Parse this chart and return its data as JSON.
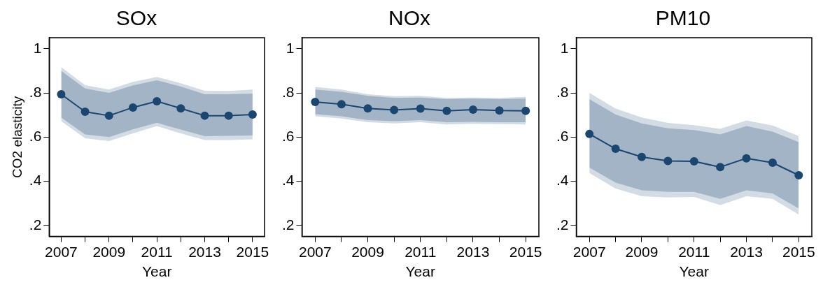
{
  "chart_data": [
    {
      "type": "line",
      "title": "SOx",
      "xlabel": "Year",
      "ylabel": "CO2 elasticity",
      "marker": "circle",
      "x": [
        2007,
        2008,
        2009,
        2010,
        2011,
        2012,
        2013,
        2014,
        2015
      ],
      "xlim": [
        2006.5,
        2015.5
      ],
      "xticks": [
        2007,
        {
          "value": 2008,
          "label": null
        },
        2009,
        {
          "value": 2010,
          "label": null
        },
        2011,
        {
          "value": 2012,
          "label": null
        },
        2013,
        {
          "value": 2014,
          "label": null
        },
        2015
      ],
      "ylim": [
        0.15,
        1.05
      ],
      "yticks": [
        {
          "value": 0.2,
          "label": ".2"
        },
        {
          "value": 0.4,
          "label": ".4"
        },
        {
          "value": 0.6,
          "label": ".6"
        },
        {
          "value": 0.8,
          "label": ".8"
        },
        {
          "value": 1,
          "label": "1"
        }
      ],
      "series": [
        {
          "color": "#1a4670",
          "values": [
            0.794,
            0.715,
            0.697,
            0.734,
            0.762,
            0.73,
            0.697,
            0.697,
            0.702
          ],
          "lower": [
            0.689,
            0.612,
            0.6,
            0.635,
            0.665,
            0.634,
            0.604,
            0.606,
            0.607
          ],
          "upper": [
            0.9,
            0.82,
            0.8,
            0.834,
            0.857,
            0.829,
            0.794,
            0.794,
            0.797
          ]
        },
        {
          "color": "#d3dbe4",
          "values": [
            null,
            null,
            null,
            null,
            null,
            null,
            null,
            null,
            null
          ],
          "lower": [
            0.672,
            0.595,
            0.582,
            0.617,
            0.65,
            0.617,
            0.587,
            0.587,
            0.59
          ],
          "upper": [
            0.917,
            0.835,
            0.815,
            0.85,
            0.872,
            0.844,
            0.81,
            0.809,
            0.815
          ]
        }
      ]
    },
    {
      "type": "line",
      "title": "NOx",
      "xlabel": "Year",
      "marker": "circle",
      "x": [
        2007,
        2008,
        2009,
        2010,
        2011,
        2012,
        2013,
        2014,
        2015
      ],
      "xlim": [
        2006.5,
        2015.5
      ],
      "xticks": [
        2007,
        {
          "value": 2008,
          "label": null
        },
        2009,
        {
          "value": 2010,
          "label": null
        },
        2011,
        {
          "value": 2012,
          "label": null
        },
        2013,
        {
          "value": 2014,
          "label": null
        },
        2015
      ],
      "ylim": [
        0.15,
        1.05
      ],
      "yticks": [
        {
          "value": 0.2,
          "label": ".2"
        },
        {
          "value": 0.4,
          "label": ".4"
        },
        {
          "value": 0.6,
          "label": ".6"
        },
        {
          "value": 0.8,
          "label": ".8"
        },
        {
          "value": 1,
          "label": "1"
        }
      ],
      "series": [
        {
          "color": "#1a4670",
          "values": [
            0.759,
            0.749,
            0.73,
            0.723,
            0.729,
            0.719,
            0.724,
            0.72,
            0.719
          ],
          "lower": [
            0.704,
            0.694,
            0.677,
            0.672,
            0.677,
            0.667,
            0.669,
            0.667,
            0.667
          ],
          "upper": [
            0.815,
            0.805,
            0.787,
            0.777,
            0.779,
            0.772,
            0.774,
            0.772,
            0.774
          ]
        },
        {
          "color": "#d3dbe4",
          "values": [
            null,
            null,
            null,
            null,
            null,
            null,
            null,
            null,
            null
          ],
          "lower": [
            0.694,
            0.684,
            0.667,
            0.662,
            0.667,
            0.657,
            0.66,
            0.659,
            0.657
          ],
          "upper": [
            0.827,
            0.815,
            0.794,
            0.785,
            0.787,
            0.777,
            0.779,
            0.777,
            0.782
          ]
        }
      ]
    },
    {
      "type": "line",
      "title": "PM10",
      "xlabel": "Year",
      "marker": "circle",
      "x": [
        2007,
        2008,
        2009,
        2010,
        2011,
        2012,
        2013,
        2014,
        2015
      ],
      "xlim": [
        2006.5,
        2015.5
      ],
      "xticks": [
        2007,
        {
          "value": 2008,
          "label": null
        },
        2009,
        {
          "value": 2010,
          "label": null
        },
        2011,
        {
          "value": 2012,
          "label": null
        },
        2013,
        {
          "value": 2014,
          "label": null
        },
        2015
      ],
      "ylim": [
        0.15,
        1.05
      ],
      "yticks": [
        {
          "value": 0.2,
          "label": ".2"
        },
        {
          "value": 0.4,
          "label": ".4"
        },
        {
          "value": 0.6,
          "label": ".6"
        },
        {
          "value": 0.8,
          "label": ".8"
        },
        {
          "value": 1,
          "label": "1"
        }
      ],
      "series": [
        {
          "color": "#1a4670",
          "values": [
            0.614,
            0.547,
            0.51,
            0.492,
            0.49,
            0.464,
            0.504,
            0.484,
            0.427
          ],
          "lower": [
            0.462,
            0.394,
            0.359,
            0.352,
            0.352,
            0.32,
            0.359,
            0.345,
            0.277
          ],
          "upper": [
            0.772,
            0.702,
            0.662,
            0.64,
            0.632,
            0.612,
            0.65,
            0.625,
            0.577
          ]
        },
        {
          "color": "#d3dbe4",
          "values": [
            null,
            null,
            null,
            null,
            null,
            null,
            null,
            null,
            null
          ],
          "lower": [
            0.437,
            0.367,
            0.332,
            0.327,
            0.329,
            0.292,
            0.332,
            0.32,
            0.249
          ],
          "upper": [
            0.8,
            0.729,
            0.689,
            0.664,
            0.654,
            0.637,
            0.675,
            0.652,
            0.605
          ]
        }
      ]
    }
  ]
}
